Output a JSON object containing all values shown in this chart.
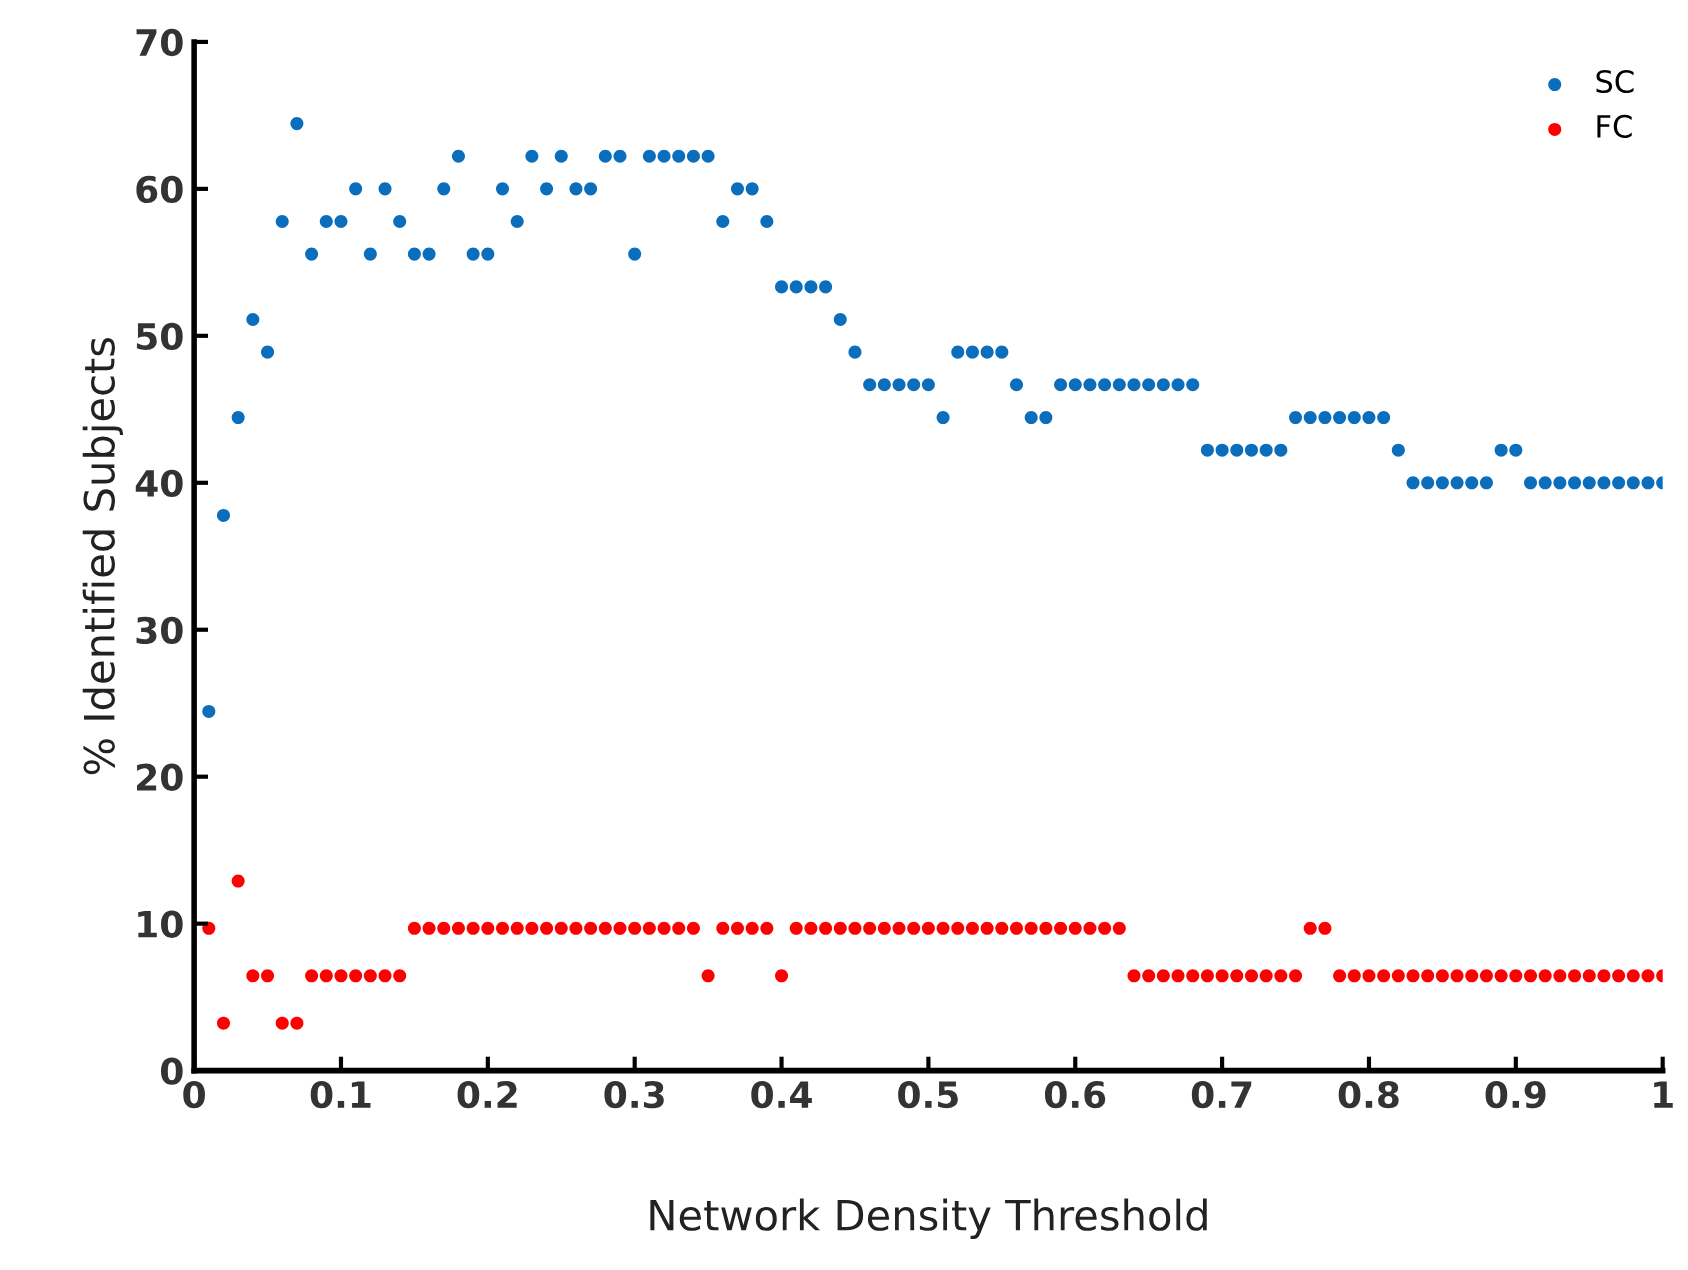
{
  "chart_data": {
    "type": "scatter",
    "xlabel": "Network Density Threshold",
    "ylabel": "% Identified Subjects",
    "x": [
      0.01,
      0.02,
      0.03,
      0.04,
      0.05,
      0.06,
      0.07,
      0.08,
      0.09,
      0.1,
      0.11,
      0.12,
      0.13,
      0.14,
      0.15,
      0.16,
      0.17,
      0.18,
      0.19,
      0.2,
      0.21,
      0.22,
      0.23,
      0.24,
      0.25,
      0.26,
      0.27,
      0.28,
      0.29,
      0.3,
      0.31,
      0.32,
      0.33,
      0.34,
      0.35,
      0.36,
      0.37,
      0.38,
      0.39,
      0.4,
      0.41,
      0.42,
      0.43,
      0.44,
      0.45,
      0.46,
      0.47,
      0.48,
      0.49,
      0.5,
      0.51,
      0.52,
      0.53,
      0.54,
      0.55,
      0.56,
      0.57,
      0.58,
      0.59,
      0.6,
      0.61,
      0.62,
      0.63,
      0.64,
      0.65,
      0.66,
      0.67,
      0.68,
      0.69,
      0.7,
      0.71,
      0.72,
      0.73,
      0.74,
      0.75,
      0.76,
      0.77,
      0.78,
      0.79,
      0.8,
      0.81,
      0.82,
      0.83,
      0.84,
      0.85,
      0.86,
      0.87,
      0.88,
      0.89,
      0.9,
      0.91,
      0.92,
      0.93,
      0.94,
      0.95,
      0.96,
      0.97,
      0.98,
      0.99,
      1.0
    ],
    "series": [
      {
        "name": "SC",
        "color": "#0a6ebd",
        "values": [
          24.44,
          37.78,
          44.44,
          51.11,
          48.89,
          57.78,
          64.44,
          55.56,
          57.78,
          57.78,
          60,
          55.56,
          60,
          57.78,
          55.56,
          55.56,
          60,
          62.22,
          55.56,
          55.56,
          60,
          57.78,
          62.22,
          60,
          62.22,
          60,
          60,
          62.22,
          62.22,
          55.56,
          62.22,
          62.22,
          62.22,
          62.22,
          62.22,
          57.78,
          60,
          60,
          57.78,
          53.33,
          53.33,
          53.33,
          53.33,
          51.11,
          48.89,
          46.67,
          46.67,
          46.67,
          46.67,
          46.67,
          44.44,
          48.89,
          48.89,
          48.89,
          48.89,
          46.67,
          44.44,
          44.44,
          46.67,
          46.67,
          46.67,
          46.67,
          46.67,
          46.67,
          46.67,
          46.67,
          46.67,
          46.67,
          42.22,
          42.22,
          42.22,
          42.22,
          42.22,
          42.22,
          44.44,
          44.44,
          44.44,
          44.44,
          44.44,
          44.44,
          44.44,
          42.22,
          40,
          40,
          40,
          40,
          40,
          40,
          42.22,
          42.22,
          40,
          40,
          40,
          40,
          40,
          40,
          40,
          40,
          40,
          40
        ]
      },
      {
        "name": "FC",
        "color": "#ff0000",
        "values": [
          9.68,
          3.23,
          12.9,
          6.45,
          6.45,
          3.23,
          3.23,
          6.45,
          6.45,
          6.45,
          6.45,
          6.45,
          6.45,
          6.45,
          9.68,
          9.68,
          9.68,
          9.68,
          9.68,
          9.68,
          9.68,
          9.68,
          9.68,
          9.68,
          9.68,
          9.68,
          9.68,
          9.68,
          9.68,
          9.68,
          9.68,
          9.68,
          9.68,
          9.68,
          6.45,
          9.68,
          9.68,
          9.68,
          9.68,
          6.45,
          9.68,
          9.68,
          9.68,
          9.68,
          9.68,
          9.68,
          9.68,
          9.68,
          9.68,
          9.68,
          9.68,
          9.68,
          9.68,
          9.68,
          9.68,
          9.68,
          9.68,
          9.68,
          9.68,
          9.68,
          9.68,
          9.68,
          9.68,
          6.45,
          6.45,
          6.45,
          6.45,
          6.45,
          6.45,
          6.45,
          6.45,
          6.45,
          6.45,
          6.45,
          6.45,
          9.68,
          9.68,
          6.45,
          6.45,
          6.45,
          6.45,
          6.45,
          6.45,
          6.45,
          6.45,
          6.45,
          6.45,
          6.45,
          6.45,
          6.45,
          6.45,
          6.45,
          6.45,
          6.45,
          6.45,
          6.45,
          6.45,
          6.45,
          6.45,
          6.45
        ]
      }
    ],
    "xlim": [
      0,
      1
    ],
    "ylim": [
      0,
      70
    ],
    "xticks": [
      0,
      0.1,
      0.2,
      0.3,
      0.4,
      0.5,
      0.6,
      0.7,
      0.8,
      0.9,
      1
    ],
    "yticks": [
      0,
      10,
      20,
      30,
      40,
      50,
      60,
      70
    ],
    "grid": false,
    "legend": "top right",
    "marker": "circle"
  }
}
